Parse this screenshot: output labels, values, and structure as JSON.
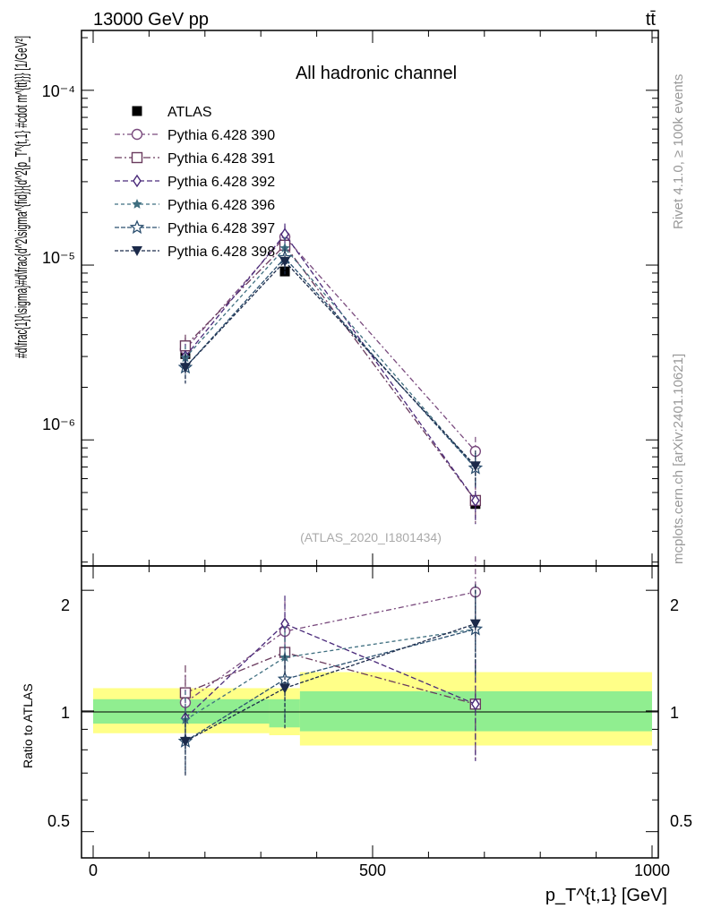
{
  "header": {
    "energy_label": "13000 GeV pp",
    "process_label": "tt̄",
    "right_note": "Rivet 4.1.0, ≥ 100k events",
    "right_note2": "mcplots.cern.ch [arXiv:2401.10621]"
  },
  "chart_data": [
    {
      "type": "line",
      "panel": "main",
      "title": "All hadronic channel",
      "watermark": "(ATLAS_2020_I1801434)",
      "ylabel": "#d\\frac{1}{\\sigma}#d\\frac{d^2\\sigma^{fid}}{d^2{p_T^{t,1} #cdot m^{tt}}} [1/GeV²]",
      "yscale": "log",
      "ylim": [
        1.9e-07,
        0.00022
      ],
      "xlim": [
        -20,
        1000
      ],
      "ytick_labels": [
        "10⁻⁴",
        "10⁻⁵",
        "10⁻⁶"
      ],
      "x": [
        165,
        343,
        684
      ],
      "series": [
        {
          "name": "ATLAS",
          "values": [
            3.1e-06,
            9.2e-06,
            4.3e-07
          ],
          "err": [
            0.0,
            0.0,
            0.0
          ],
          "color": "#000000",
          "marker": "filled-square"
        },
        {
          "name": "Pythia 6.428 390",
          "values": [
            3.3e-06,
            1.45e-05,
            8.6e-07
          ],
          "err": [
            5.5e-07,
            2.2e-06,
            1.8e-07
          ],
          "color": "#7a4b7e",
          "marker": "open-circle"
        },
        {
          "name": "Pythia 6.428 391",
          "values": [
            3.45e-06,
            1.3e-05,
            4.5e-07
          ],
          "err": [
            5.5e-07,
            2e-06,
            1.2e-07
          ],
          "color": "#6a3b5e",
          "marker": "open-square"
        },
        {
          "name": "Pythia 6.428 392",
          "values": [
            3e-06,
            1.5e-05,
            4.5e-07
          ],
          "err": [
            5.5e-07,
            2.3e-06,
            1.2e-07
          ],
          "color": "#4a2a7a",
          "marker": "open-diamond"
        },
        {
          "name": "Pythia 6.428 396",
          "values": [
            2.95e-06,
            1.25e-05,
            6.9e-07
          ],
          "err": [
            5e-07,
            2e-06,
            1.5e-07
          ],
          "color": "#3f6f80",
          "marker": "filled-star"
        },
        {
          "name": "Pythia 6.428 397",
          "values": [
            2.6e-06,
            1.1e-05,
            6.9e-07
          ],
          "err": [
            4.5e-07,
            1.8e-06,
            1.5e-07
          ],
          "color": "#2b4f6f",
          "marker": "open-star"
        },
        {
          "name": "Pythia 6.428 398",
          "values": [
            2.6e-06,
            1.05e-05,
            7.1e-07
          ],
          "err": [
            5e-07,
            1.8e-06,
            1.6e-07
          ],
          "color": "#1b2a4a",
          "marker": "filled-triangle-down"
        }
      ]
    },
    {
      "type": "line",
      "panel": "ratio",
      "ylabel": "Ratio to ATLAS",
      "xlabel": "p_T^{t,1} [GeV]",
      "yscale": "log",
      "ylim": [
        0.43,
        2.3
      ],
      "xlim": [
        -20,
        1000
      ],
      "xtick_labels": [
        "0",
        "500",
        "1000"
      ],
      "ytick_labels": [
        "2",
        "1",
        "0.5"
      ],
      "x": [
        165,
        343,
        684
      ],
      "bands": {
        "edges": [
          0,
          315,
          370,
          1000
        ],
        "green_lo": [
          0.93,
          0.91,
          0.89
        ],
        "green_hi": [
          1.07,
          1.07,
          1.12
        ],
        "yellow_lo": [
          0.88,
          0.87,
          0.82
        ],
        "yellow_hi": [
          1.14,
          1.14,
          1.25
        ]
      },
      "series": [
        {
          "name": "Pythia 6.428 390",
          "values": [
            1.05,
            1.58,
            1.98
          ],
          "err": [
            0.18,
            0.3,
            0.45
          ]
        },
        {
          "name": "Pythia 6.428 391",
          "values": [
            1.11,
            1.4,
            1.04
          ],
          "err": [
            0.19,
            0.28,
            0.29
          ]
        },
        {
          "name": "Pythia 6.428 392",
          "values": [
            0.96,
            1.65,
            1.04
          ],
          "err": [
            0.17,
            0.29,
            0.29
          ]
        },
        {
          "name": "Pythia 6.428 396",
          "values": [
            0.95,
            1.36,
            1.6
          ],
          "err": [
            0.17,
            0.27,
            0.4
          ]
        },
        {
          "name": "Pythia 6.428 397",
          "values": [
            0.84,
            1.2,
            1.6
          ],
          "err": [
            0.15,
            0.25,
            0.4
          ]
        },
        {
          "name": "Pythia 6.428 398",
          "values": [
            0.84,
            1.14,
            1.65
          ],
          "err": [
            0.15,
            0.24,
            0.42
          ]
        }
      ]
    }
  ]
}
